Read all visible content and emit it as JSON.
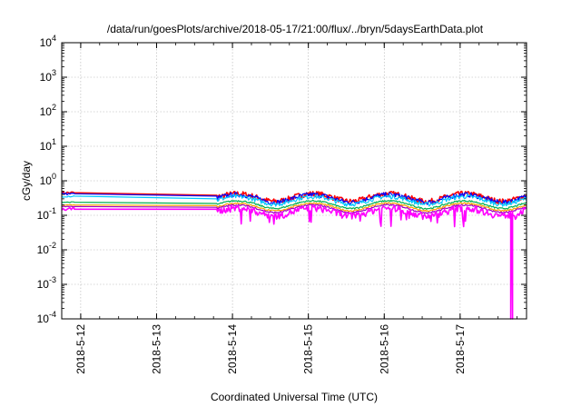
{
  "chart_data": {
    "type": "line",
    "title": "/data/run/goesPlots/archive/2018-05-17/21:00/flux/../bryn/5daysEarthData.plot",
    "xlabel": "Coordinated Universal Time (UTC)",
    "ylabel": "cGy/day",
    "yscale": "log",
    "ylim": [
      0.0001,
      10000
    ],
    "xlim": [
      "2018-05-11T18:00",
      "2018-05-17T21:00"
    ],
    "x_ticks": [
      "2018-5-12",
      "2018-5-13",
      "2018-5-14",
      "2018-5-15",
      "2018-5-16",
      "2018-5-17"
    ],
    "y_ticks": [
      {
        "base": "10",
        "exp": "4"
      },
      {
        "base": "10",
        "exp": "3"
      },
      {
        "base": "10",
        "exp": "2"
      },
      {
        "base": "10",
        "exp": "1"
      },
      {
        "base": "10",
        "exp": "0"
      },
      {
        "base": "10",
        "exp": "-1"
      },
      {
        "base": "10",
        "exp": "-2"
      },
      {
        "base": "10",
        "exp": "-3"
      },
      {
        "base": "10",
        "exp": "-4"
      }
    ],
    "grid": true,
    "data_gap": [
      "2018-05-11T22:00",
      "2018-05-13T19:00"
    ],
    "series": [
      {
        "color": "#ff0000",
        "values": [
          0.45,
          0.38,
          0.34
        ],
        "noise": 0.18
      },
      {
        "color": "#0000ff",
        "values": [
          0.42,
          0.36,
          0.32
        ],
        "noise": 0.16
      },
      {
        "color": "#00c8ff",
        "values": [
          0.36,
          0.3,
          0.28
        ],
        "noise": 0.14
      },
      {
        "color": "#00b050",
        "values": [
          0.24,
          0.22,
          0.21
        ],
        "noise": 0.05
      },
      {
        "color": "#ffa000",
        "values": [
          0.2,
          0.19,
          0.18
        ],
        "noise": 0.05
      },
      {
        "color": "#a000c0",
        "values": [
          0.18,
          0.17,
          0.16
        ],
        "noise": 0.05
      },
      {
        "color": "#ff00ff",
        "values": [
          0.15,
          0.15,
          0.13
        ],
        "noise": 0.22
      }
    ]
  }
}
